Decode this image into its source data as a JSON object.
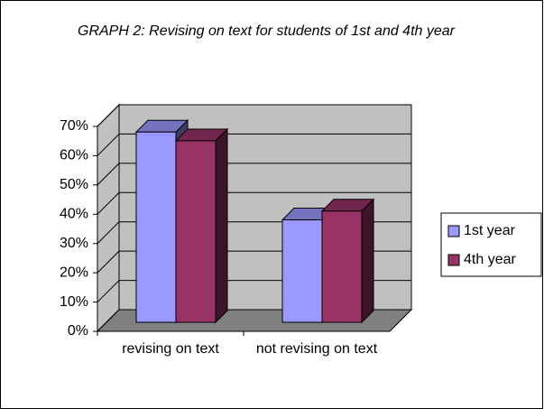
{
  "chart_data": {
    "type": "bar3d",
    "title": "GRAPH 2: Revising on text for students of 1st and 4th year",
    "categories": [
      "revising on text",
      "not revising on text"
    ],
    "series": [
      {
        "name": "1st year",
        "color": "#9999ff",
        "values": [
          65,
          35
        ]
      },
      {
        "name": "4th year",
        "color": "#993366",
        "values": [
          62,
          38
        ]
      }
    ],
    "ylim": [
      0,
      70
    ],
    "yticks": [
      {
        "value": 0,
        "label": "0%"
      },
      {
        "value": 10,
        "label": "10%"
      },
      {
        "value": 20,
        "label": "20%"
      },
      {
        "value": 30,
        "label": "30%"
      },
      {
        "value": 40,
        "label": "40%"
      },
      {
        "value": 50,
        "label": "50%"
      },
      {
        "value": 60,
        "label": "60%"
      },
      {
        "value": 70,
        "label": "70%"
      }
    ],
    "grid": true,
    "legend": "right"
  }
}
